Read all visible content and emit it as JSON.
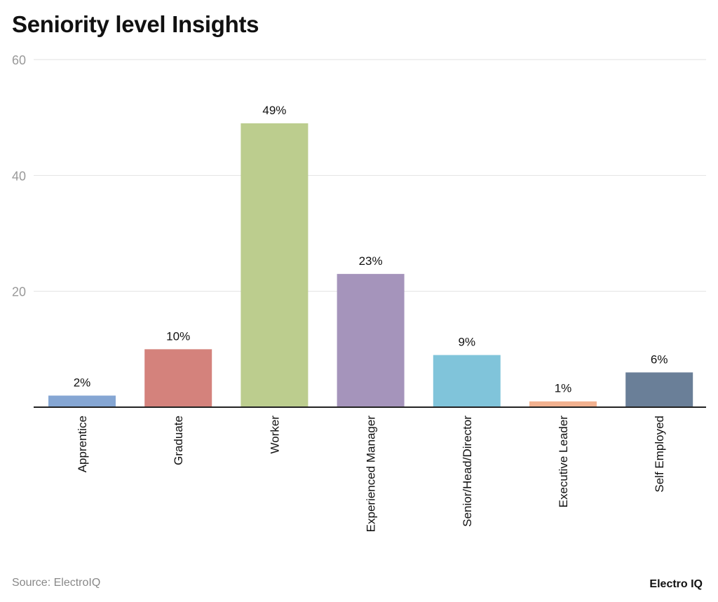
{
  "chart_data": {
    "type": "bar",
    "title": "Seniority level Insights",
    "categories": [
      "Apprentice",
      "Graduate",
      "Worker",
      "Experienced Manager",
      "Senior/Head/Director",
      "Executive Leader",
      "Self Employed"
    ],
    "values": [
      2,
      10,
      49,
      23,
      9,
      1,
      6
    ],
    "data_labels": [
      "2%",
      "10%",
      "49%",
      "23%",
      "9%",
      "1%",
      "6%"
    ],
    "colors": [
      "#85a6d3",
      "#d4827c",
      "#bccd8e",
      "#a594bb",
      "#80c4da",
      "#f2b18f",
      "#6a7f98"
    ],
    "ylim": [
      0,
      60
    ],
    "yticks": [
      20,
      40,
      60
    ],
    "xlabel": "",
    "ylabel": "",
    "grid": true,
    "legend": "none"
  },
  "footer": {
    "source": "Source: ElectroIQ",
    "brand": "Electro IQ"
  }
}
